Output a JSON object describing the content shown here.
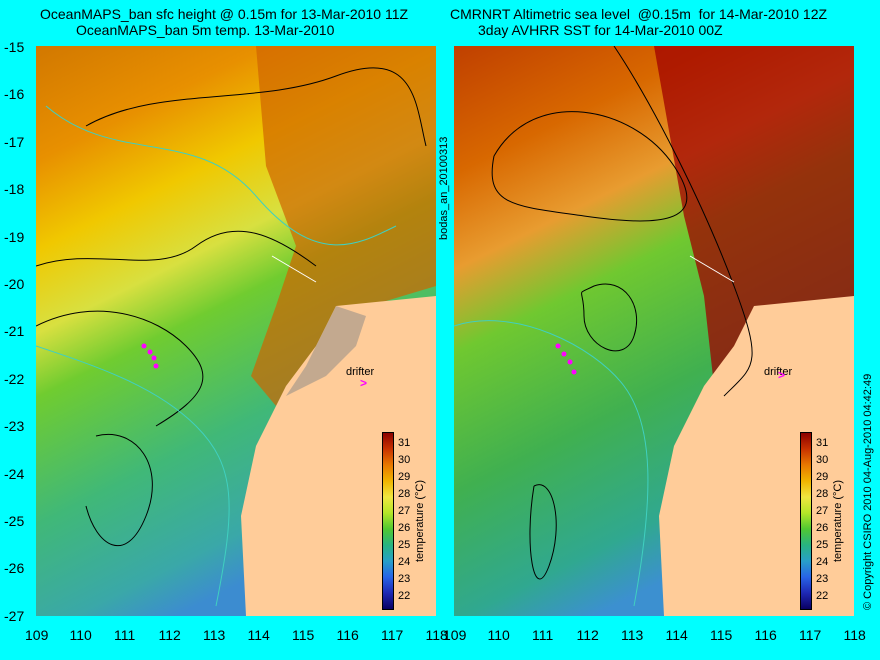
{
  "left_panel": {
    "title_line1": "OceanMAPS_ban sfc height @ 0.15m for 13-Mar-2010 11Z",
    "title_line2": "OceanMAPS_ban 5m temp. 13-Mar-2010"
  },
  "right_panel": {
    "title_line1": "CMRNRT Altimetric sea level  @0.15m  for 14-Mar-2010 12Z",
    "title_line2": "3day AVHRR SST for 14-Mar-2010 00Z"
  },
  "y_ticks": [
    "-15",
    "-16",
    "-17",
    "-18",
    "-19",
    "-20",
    "-21",
    "-22",
    "-23",
    "-24",
    "-25",
    "-26",
    "-27"
  ],
  "x_ticks_left": [
    "109",
    "110",
    "111",
    "112",
    "113",
    "114",
    "115",
    "116",
    "117",
    "118"
  ],
  "x_ticks_right": [
    "109",
    "110",
    "111",
    "112",
    "113",
    "114",
    "115",
    "116",
    "117",
    "118"
  ],
  "colorbar": {
    "title": "temperature (°C)",
    "labels": [
      "31",
      "30",
      "29",
      "28",
      "27",
      "26",
      "25",
      "24",
      "23",
      "22"
    ],
    "colors": [
      "#8b0000",
      "#c83200",
      "#e87800",
      "#f0b400",
      "#f0e640",
      "#b4e628",
      "#50c832",
      "#28b480",
      "#28a0c8",
      "#2864e6",
      "#1e28b4",
      "#0a0064"
    ]
  },
  "drifter_label": "drifter",
  "side_label": "bodas_an_20100313",
  "copyright": "© Copyright CSIRO 2010  04-Aug-2010 04:42:49"
}
